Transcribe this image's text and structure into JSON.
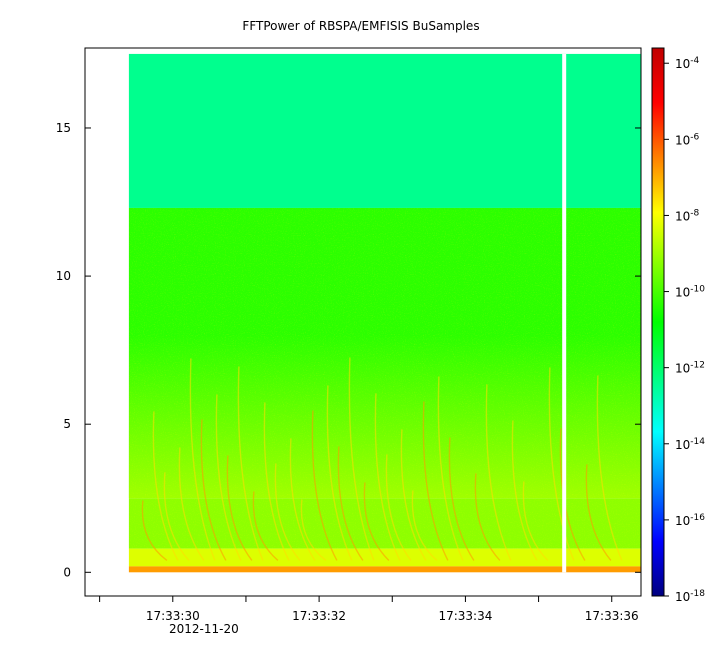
{
  "chart_data": {
    "type": "heatmap",
    "title": "FFTPower of RBSPA/EMFISIS  BuSamples",
    "xlabel": "",
    "ylabel": "",
    "x_range_seconds": [
      28.8,
      36.4
    ],
    "y_range": [
      -0.8,
      17.7
    ],
    "y_ticks": [
      0,
      5,
      10,
      15
    ],
    "x_ticks": [
      {
        "sec": 30,
        "label": "17:33:30"
      },
      {
        "sec": 32,
        "label": "17:33:32"
      },
      {
        "sec": 34,
        "label": "17:33:34"
      },
      {
        "sec": 36,
        "label": "17:33:36"
      }
    ],
    "x_minor_ticks_sec": [
      29,
      30,
      31,
      32,
      33,
      34,
      35,
      36
    ],
    "date_label": "2012-11-20",
    "data_extent": {
      "x_start_sec": 29.4,
      "x_end_sec": 36.4,
      "y_min": 0,
      "y_max": 17.5
    },
    "gap": {
      "x_sec": 35.35
    },
    "bands": [
      {
        "y_from": 12.3,
        "y_to": 17.5,
        "log10_power": -12.4
      },
      {
        "y_from": 2.5,
        "y_to": 12.3,
        "log10_power": -10.3
      },
      {
        "y_from": 0.8,
        "y_to": 2.5,
        "log10_power": -9.2
      },
      {
        "y_from": 0.2,
        "y_to": 0.8,
        "log10_power": -8.3
      },
      {
        "y_from": 0.0,
        "y_to": 0.2,
        "log10_power": -6.8
      }
    ],
    "colorbar": {
      "scale": "log",
      "range_exponent": [
        -18,
        -3.6
      ],
      "ticks": [
        {
          "exp": -4,
          "label": "10",
          "sup": "-4"
        },
        {
          "exp": -6,
          "label": "10",
          "sup": "-6"
        },
        {
          "exp": -8,
          "label": "10",
          "sup": "-8"
        },
        {
          "exp": -10,
          "label": "10",
          "sup": "-10"
        },
        {
          "exp": -12,
          "label": "10",
          "sup": "-12"
        },
        {
          "exp": -14,
          "label": "10",
          "sup": "-14"
        },
        {
          "exp": -16,
          "label": "10",
          "sup": "-16"
        },
        {
          "exp": -18,
          "label": "10",
          "sup": "-18"
        }
      ],
      "colors": [
        "#00007f",
        "#0000ff",
        "#0080ff",
        "#00ffff",
        "#00ff80",
        "#00ff00",
        "#80ff00",
        "#ffff00",
        "#ff8000",
        "#ff0000",
        "#c00000"
      ]
    }
  }
}
